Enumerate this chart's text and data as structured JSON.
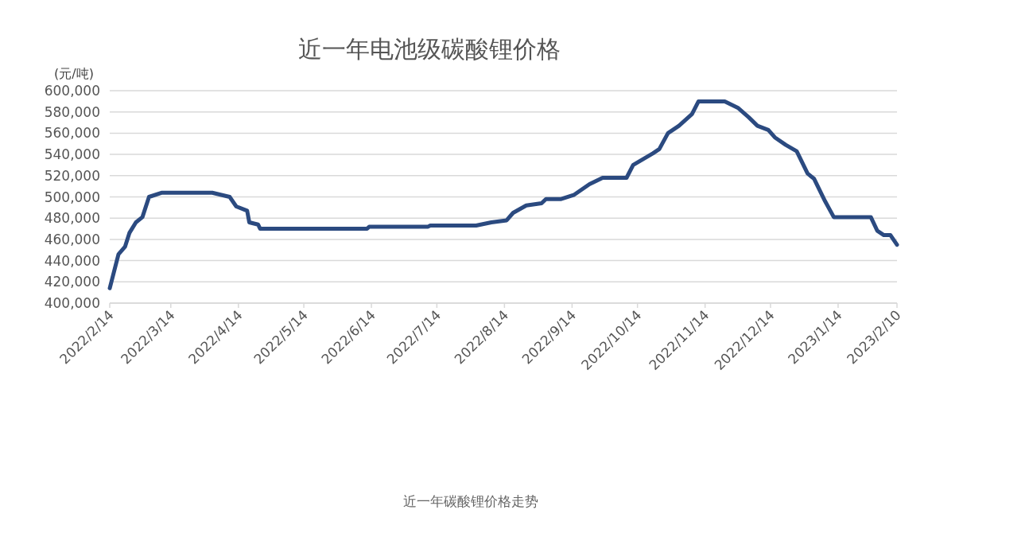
{
  "chart_data": {
    "type": "line",
    "title": "近一年电池级碳酸锂价格",
    "ylabel": "(元/吨)",
    "annotations": [
      "近一年碳酸锂价格走势"
    ],
    "x": [
      "2022-02-14",
      "2022-02-18",
      "2022-02-21",
      "2022-02-23",
      "2022-02-26",
      "2022-03-01",
      "2022-03-04",
      "2022-03-10",
      "2022-04-02",
      "2022-04-10",
      "2022-04-13",
      "2022-04-18",
      "2022-04-19",
      "2022-04-23",
      "2022-04-24",
      "2022-06-12",
      "2022-06-13",
      "2022-07-10",
      "2022-07-11",
      "2022-08-01",
      "2022-08-08",
      "2022-08-15",
      "2022-08-18",
      "2022-08-24",
      "2022-08-31",
      "2022-09-02",
      "2022-09-09",
      "2022-09-15",
      "2022-09-22",
      "2022-09-28",
      "2022-10-09",
      "2022-10-12",
      "2022-10-21",
      "2022-10-24",
      "2022-10-28",
      "2022-11-02",
      "2022-11-08",
      "2022-11-11",
      "2022-11-23",
      "2022-11-29",
      "2022-12-04",
      "2022-12-08",
      "2022-12-13",
      "2022-12-16",
      "2022-12-21",
      "2022-12-26",
      "2022-12-31",
      "2023-01-03",
      "2023-01-08",
      "2023-01-12",
      "2023-01-29",
      "2023-02-01",
      "2023-02-04",
      "2023-02-07",
      "2023-02-10"
    ],
    "series": [
      {
        "color": "#2b4a80",
        "values": [
          414000,
          446000,
          453000,
          466000,
          476000,
          481000,
          500000,
          504000,
          504000,
          500000,
          491000,
          487000,
          476000,
          474000,
          470000,
          470000,
          472000,
          472000,
          473000,
          473000,
          476000,
          478000,
          485000,
          492000,
          494000,
          498000,
          498000,
          502000,
          512000,
          518000,
          518000,
          530000,
          541000,
          545000,
          560000,
          567000,
          578000,
          590000,
          590000,
          584000,
          575000,
          567000,
          563000,
          556000,
          549000,
          543000,
          522000,
          517000,
          496000,
          481000,
          481000,
          468000,
          464000,
          464000,
          455000
        ]
      }
    ],
    "xlim": [
      "2022-02-14",
      "2023-02-10"
    ],
    "xticks": [
      {
        "value": "2022-02-14",
        "label": "2022/2/14"
      },
      {
        "value": "2022-03-14",
        "label": "2022/3/14"
      },
      {
        "value": "2022-04-14",
        "label": "2022/4/14"
      },
      {
        "value": "2022-05-14",
        "label": "2022/5/14"
      },
      {
        "value": "2022-06-14",
        "label": "2022/6/14"
      },
      {
        "value": "2022-07-14",
        "label": "2022/7/14"
      },
      {
        "value": "2022-08-14",
        "label": "2022/8/14"
      },
      {
        "value": "2022-09-14",
        "label": "2022/9/14"
      },
      {
        "value": "2022-10-14",
        "label": "2022/10/14"
      },
      {
        "value": "2022-11-14",
        "label": "2022/11/14"
      },
      {
        "value": "2022-12-14",
        "label": "2022/12/14"
      },
      {
        "value": "2023-01-14",
        "label": "2023/1/14"
      },
      {
        "value": "2023-02-10",
        "label": "2023/2/10"
      }
    ],
    "ylim": [
      400000,
      600000
    ],
    "yticks": [
      {
        "value": 400000,
        "label": "400,000"
      },
      {
        "value": 420000,
        "label": "420,000"
      },
      {
        "value": 440000,
        "label": "440,000"
      },
      {
        "value": 460000,
        "label": "460,000"
      },
      {
        "value": 480000,
        "label": "480,000"
      },
      {
        "value": 500000,
        "label": "500,000"
      },
      {
        "value": 520000,
        "label": "520,000"
      },
      {
        "value": 540000,
        "label": "540,000"
      },
      {
        "value": 560000,
        "label": "560,000"
      },
      {
        "value": 580000,
        "label": "580,000"
      },
      {
        "value": 600000,
        "label": "600,000"
      }
    ],
    "grid": "y",
    "marker": "none",
    "line_style": "solid"
  }
}
